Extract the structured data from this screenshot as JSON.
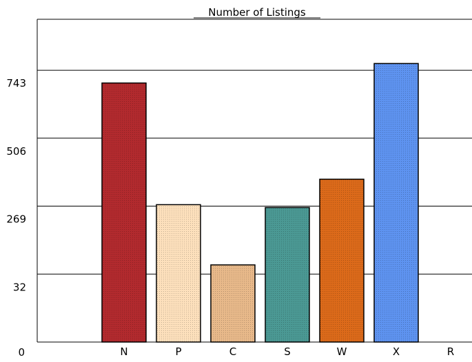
{
  "chart_data": {
    "type": "bar",
    "title": "Number of Listings",
    "xlabel": "",
    "ylabel": "",
    "categories": [
      "N",
      "P",
      "C",
      "S",
      "W",
      "X",
      "R"
    ],
    "values": [
      907,
      481,
      270,
      471,
      570,
      975,
      0
    ],
    "y_ticks": [
      "0",
      "32",
      "269",
      "506",
      "743"
    ],
    "ylim": [
      0,
      1130
    ],
    "grid": true,
    "legend": "none",
    "colors": [
      "#b22a2e",
      "#fde0bc",
      "#e8b98a",
      "#4b9994",
      "#dc6a1a",
      "#5e93f0",
      "#ffffff"
    ]
  }
}
